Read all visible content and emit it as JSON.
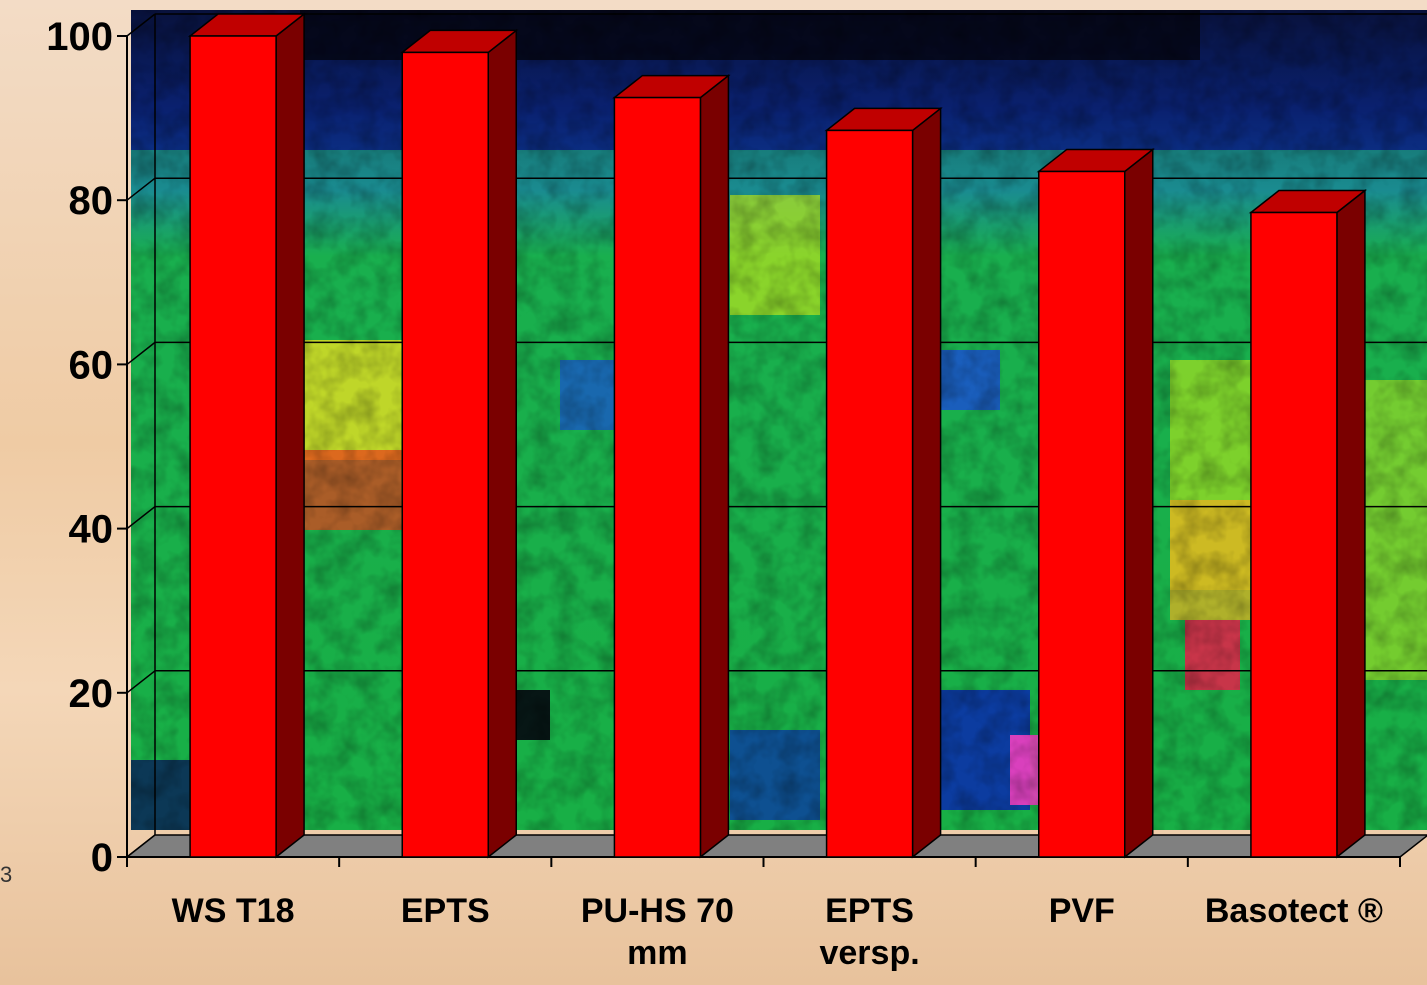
{
  "chart_data": {
    "type": "bar",
    "style": "3d",
    "categories": [
      [
        "WS T18"
      ],
      [
        "EPTS"
      ],
      [
        "PU-HS 70",
        "mm"
      ],
      [
        "EPTS",
        "versp."
      ],
      [
        "PVF"
      ],
      [
        "Basotect ®"
      ]
    ],
    "values": [
      100,
      98,
      92.5,
      88.5,
      83.5,
      78.5
    ],
    "yticks": [
      0,
      20,
      40,
      60,
      80,
      100
    ],
    "ylim": [
      0,
      100
    ],
    "title": "",
    "xlabel": "",
    "ylabel": "",
    "grid": true,
    "legend": "none",
    "colors": {
      "bar_front": "#ff0000",
      "bar_side": "#7a0000",
      "bar_top": "#c00000",
      "floor": "#808080",
      "gridline": "#000000"
    }
  }
}
